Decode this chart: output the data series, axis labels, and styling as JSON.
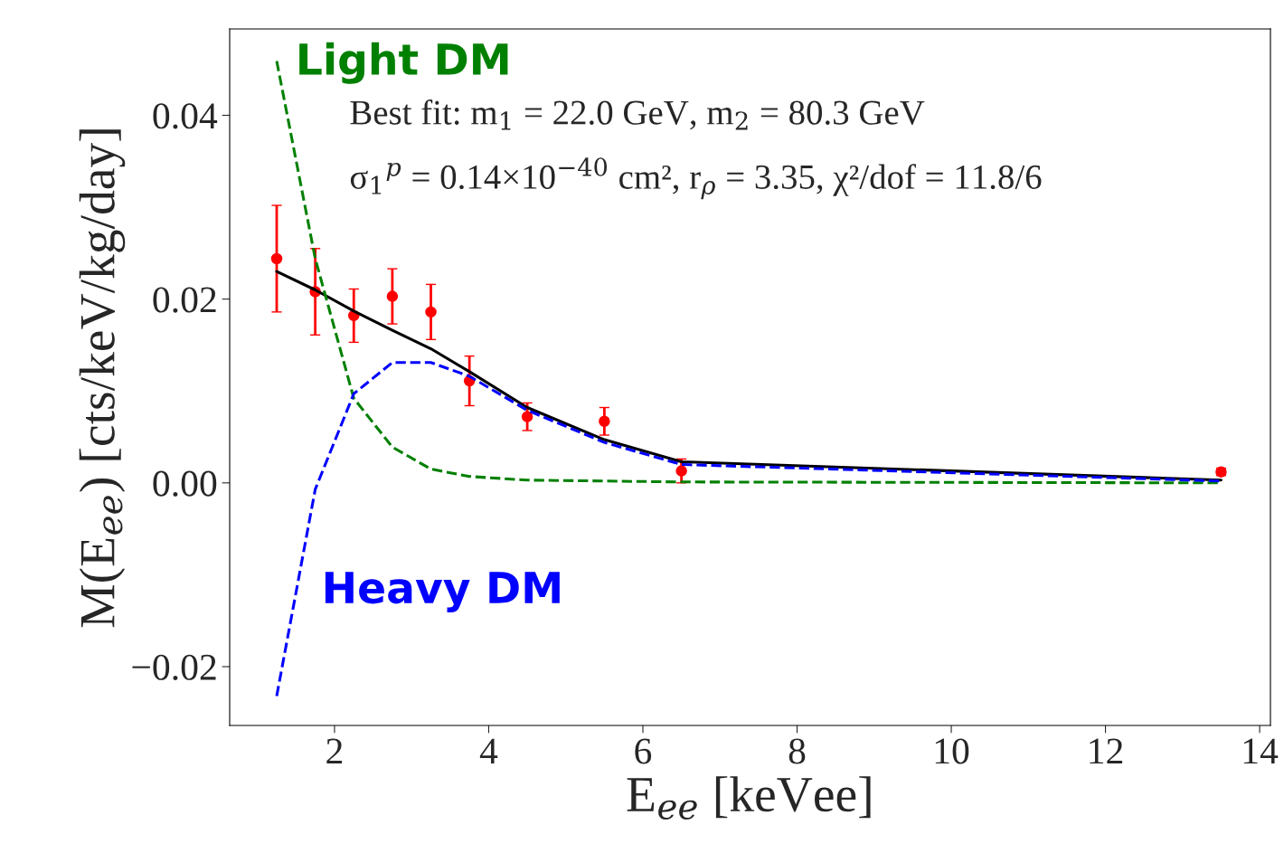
{
  "chart_data": {
    "type": "line",
    "xlabel": "E$_{ee}$ [keVee]",
    "ylabel": "M(E$_{ee}$) [cts/keV/kg/day]",
    "x": [
      1.25,
      1.75,
      2.25,
      2.75,
      3.25,
      3.75,
      4.5,
      5.5,
      6.5,
      13.5
    ],
    "series": [
      {
        "type": "scatter",
        "color": "#ff0000",
        "values": [
          0.0244,
          0.0208,
          0.0182,
          0.0203,
          0.0186,
          0.0111,
          0.0072,
          0.0067,
          0.0013,
          0.0012
        ],
        "errors": [
          0.0058,
          0.0047,
          0.0029,
          0.003,
          0.003,
          0.0027,
          0.0015,
          0.0015,
          0.0013,
          0.0004
        ],
        "marker": "circle"
      },
      {
        "color": "#000000",
        "line_style": "solid",
        "values": [
          0.023,
          0.021,
          0.0187,
          0.0166,
          0.0146,
          0.0121,
          0.0082,
          0.0047,
          0.0023,
          0.0003
        ]
      },
      {
        "type": "line",
        "name": "Light DM",
        "color": "#008000",
        "line_style": "dashed",
        "values": [
          0.0459,
          0.0244,
          0.0092,
          0.0039,
          0.0015,
          0.0007,
          0.0003,
          0.0002,
          0.0001,
          0.0
        ]
      },
      {
        "type": "line",
        "name": "Heavy DM",
        "color": "#0000ff",
        "line_style": "dashed",
        "values": [
          -0.0232,
          -0.0007,
          0.0097,
          0.0131,
          0.0131,
          0.0116,
          0.0079,
          0.0044,
          0.002,
          0.0002
        ]
      }
    ],
    "annotations": [
      "Best fit: m$_{1}$ = 22.0 GeV, m$_{2}$ = 80.3 GeV",
      "σ$_{1}$$^{p}$ = 0.14×10$^{−40}$ cm², r$_{ρ}$ = 3.35, χ²/dof = 11.8/6"
    ],
    "xlim": [
      0.64,
      14.14
    ],
    "ylim": [
      -0.0264,
      0.0494
    ],
    "xticks": [
      2,
      4,
      6,
      8,
      10,
      12,
      14
    ],
    "yticks": [
      {
        "value": -0.02,
        "label": "−0.02"
      },
      {
        "value": 0.0,
        "label": "0.00"
      },
      {
        "value": 0.02,
        "label": "0.02"
      },
      {
        "value": 0.04,
        "label": "0.04"
      }
    ],
    "grid": false,
    "legend": false
  }
}
